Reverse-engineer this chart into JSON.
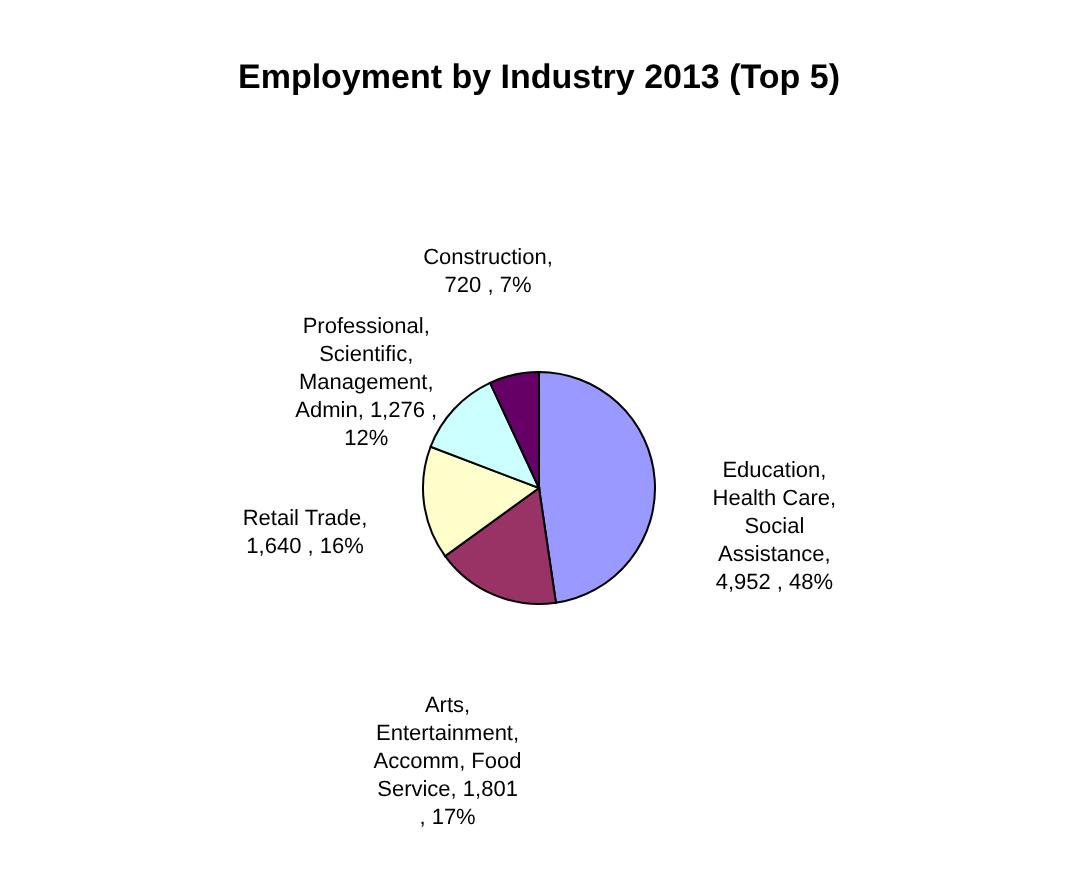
{
  "chart_data": {
    "type": "pie",
    "title": "Employment by Industry 2013 (Top 5)",
    "categories": [
      "Education, Health Care, Social Assistance",
      "Arts, Entertainment, Accomm, Food Service",
      "Retail Trade",
      "Professional, Scientific, Management, Admin",
      "Construction"
    ],
    "values": [
      4952,
      1801,
      1640,
      1276,
      720
    ],
    "value_labels": [
      ", 4,952 , 48%",
      ", 1,801 , 17%",
      ", 1,640 , 16%",
      ", 1,276 , 12%",
      ", 720 , 7%"
    ],
    "colors": [
      "#9999ff",
      "#993366",
      "#ffffcc",
      "#ccffff",
      "#660066"
    ],
    "legend": false
  }
}
